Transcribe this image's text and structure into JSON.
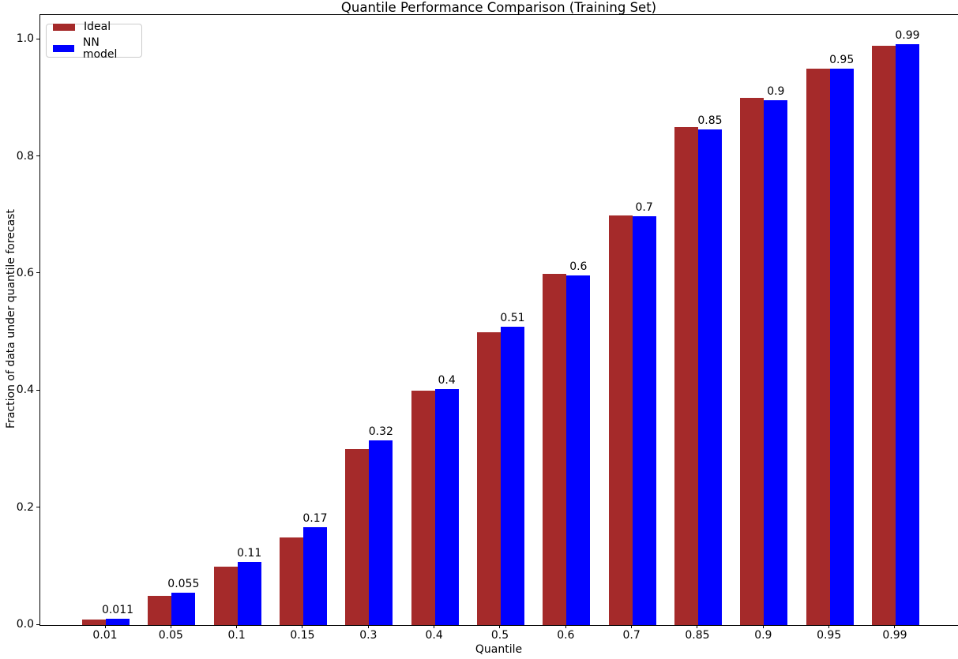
{
  "chart_data": {
    "type": "bar",
    "title": "Quantile Performance Comparison (Training Set)",
    "xlabel": "Quantile",
    "ylabel": "Fraction of data under quantile forecast",
    "categories": [
      "0.01",
      "0.05",
      "0.1",
      "0.15",
      "0.3",
      "0.4",
      "0.5",
      "0.6",
      "0.7",
      "0.85",
      "0.9",
      "0.95",
      "0.99"
    ],
    "series": [
      {
        "name": "Ideal",
        "color": "#a52a2a",
        "values": [
          0.01,
          0.05,
          0.1,
          0.15,
          0.3,
          0.4,
          0.5,
          0.6,
          0.7,
          0.85,
          0.9,
          0.95,
          0.99
        ]
      },
      {
        "name": "NN model",
        "color": "#0000ff",
        "values": [
          0.011,
          0.055,
          0.108,
          0.167,
          0.316,
          0.403,
          0.509,
          0.597,
          0.698,
          0.847,
          0.897,
          0.951,
          0.992
        ],
        "bar_labels": [
          "0.011",
          "0.055",
          "0.11",
          "0.17",
          "0.32",
          "0.4",
          "0.51",
          "0.6",
          "0.7",
          "0.85",
          "0.9",
          "0.95",
          "0.99"
        ]
      }
    ],
    "ylim": [
      0,
      1.042
    ],
    "yticks": [
      "0.0",
      "0.2",
      "0.4",
      "0.6",
      "0.8",
      "1.0"
    ],
    "ytick_values": [
      0,
      0.2,
      0.4,
      0.6,
      0.8,
      1.0
    ],
    "legend": {
      "position": "upper-left"
    },
    "grid": false
  }
}
